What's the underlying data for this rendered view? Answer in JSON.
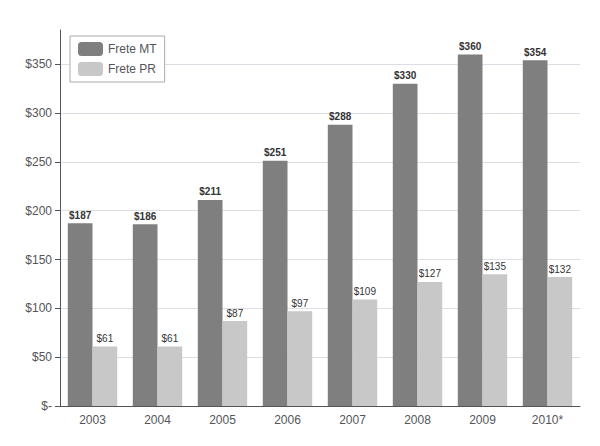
{
  "chart_data": {
    "type": "bar",
    "categories": [
      "2003",
      "2004",
      "2005",
      "2006",
      "2007",
      "2008",
      "2009",
      "2010*"
    ],
    "series": [
      {
        "name": "Frete MT",
        "color": "#7f7f7f",
        "values": [
          187,
          186,
          211,
          251,
          288,
          330,
          360,
          354
        ],
        "value_labels": [
          "$187",
          "$186",
          "$211",
          "$251",
          "$288",
          "$330",
          "$360",
          "$354"
        ]
      },
      {
        "name": "Frete PR",
        "color": "#c8c8c8",
        "values": [
          61,
          61,
          87,
          97,
          109,
          127,
          135,
          132
        ],
        "value_labels": [
          "$61",
          "$61",
          "$87",
          "$97",
          "$109",
          "$127",
          "$135",
          "$132"
        ]
      }
    ],
    "ylim": [
      0,
      385
    ],
    "yticks": [
      {
        "value": 0,
        "label": "$-"
      },
      {
        "value": 50,
        "label": "$50"
      },
      {
        "value": 100,
        "label": "$100"
      },
      {
        "value": 150,
        "label": "$150"
      },
      {
        "value": 200,
        "label": "$200"
      },
      {
        "value": 250,
        "label": "$250"
      },
      {
        "value": 300,
        "label": "$300"
      },
      {
        "value": 350,
        "label": "$350"
      }
    ],
    "grid": true,
    "legend": "upper left",
    "data_labels": true
  }
}
